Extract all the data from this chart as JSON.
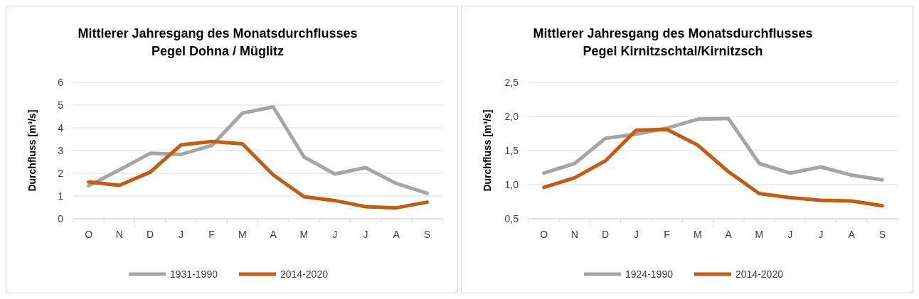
{
  "chart_data": [
    {
      "type": "line",
      "title": "Mittlerer Jahresgang des Monatsdurchflusses",
      "subtitle": "Pegel Dohna / Müglitz",
      "ylabel": "Durchfluss [m³/s]",
      "categories": [
        "O",
        "N",
        "D",
        "J",
        "F",
        "M",
        "A",
        "M",
        "J",
        "J",
        "A",
        "S"
      ],
      "series": [
        {
          "name": "1931-1990",
          "color": "#a5a5a5",
          "values": [
            1.45,
            2.15,
            2.88,
            2.83,
            3.22,
            4.65,
            4.92,
            2.72,
            1.97,
            2.25,
            1.55,
            1.12
          ]
        },
        {
          "name": "2014-2020",
          "color": "#c55a11",
          "values": [
            1.62,
            1.47,
            2.05,
            3.25,
            3.4,
            3.3,
            1.93,
            0.97,
            0.8,
            0.53,
            0.48,
            0.73
          ]
        }
      ],
      "ylim": [
        0,
        6
      ],
      "yticks": [
        0,
        1,
        2,
        3,
        4,
        5,
        6
      ],
      "grid": "y",
      "legend": "bottom",
      "marker": "none",
      "line_style": "solid"
    },
    {
      "type": "line",
      "title": "Mittlerer Jahresgang des Monatsdurchflusses",
      "subtitle": "Pegel Kirnitzschtal/Kirnitzsch",
      "ylabel": "Durchfluss [m³/s]",
      "categories": [
        "O",
        "N",
        "D",
        "J",
        "F",
        "M",
        "A",
        "M",
        "J",
        "J",
        "A",
        "S"
      ],
      "series": [
        {
          "name": "1924-1990",
          "color": "#a5a5a5",
          "values": [
            1.17,
            1.31,
            1.68,
            1.74,
            1.83,
            1.96,
            1.97,
            1.31,
            1.17,
            1.26,
            1.14,
            1.07
          ]
        },
        {
          "name": "2014-2020",
          "color": "#c55a11",
          "values": [
            0.96,
            1.1,
            1.35,
            1.8,
            1.81,
            1.58,
            1.19,
            0.87,
            0.81,
            0.77,
            0.76,
            0.69
          ]
        }
      ],
      "ylim": [
        0.5,
        2.5
      ],
      "yticks": [
        {
          "value": 0.5,
          "label": "0,5"
        },
        {
          "value": 1,
          "label": "1,0"
        },
        {
          "value": 1.5,
          "label": "1,5"
        },
        {
          "value": 2,
          "label": "2,0"
        },
        {
          "value": 2.5,
          "label": "2,5"
        }
      ],
      "grid": "y",
      "legend": "bottom",
      "marker": "none",
      "line_style": "solid"
    }
  ]
}
